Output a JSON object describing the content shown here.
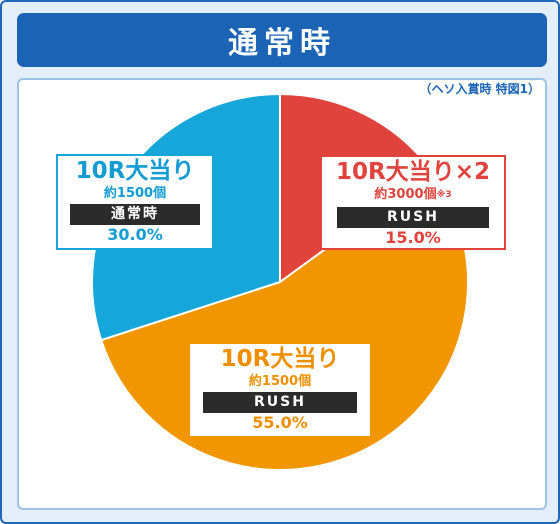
{
  "header": {
    "title": "通常時"
  },
  "note": "（ヘソ入賞時 特図1）",
  "colors": {
    "blue": "#17a6d9",
    "red": "#e0433c",
    "orange": "#f29600",
    "header": "#1a63b5"
  },
  "chart_data": {
    "type": "pie",
    "title": "通常時",
    "slices": [
      {
        "label": "10R大当り×2",
        "payout": "約3000個",
        "note": "※3",
        "mode": "RUSH",
        "value": 15.0,
        "value_label": "15.0%",
        "color": "#e0433c"
      },
      {
        "label": "10R大当り",
        "payout": "約1500個",
        "mode": "RUSH",
        "value": 55.0,
        "value_label": "55.0%",
        "color": "#f29600"
      },
      {
        "label": "10R大当り",
        "payout": "約1500個",
        "mode": "通常時",
        "value": 30.0,
        "value_label": "30.0%",
        "color": "#17a6d9"
      }
    ]
  }
}
